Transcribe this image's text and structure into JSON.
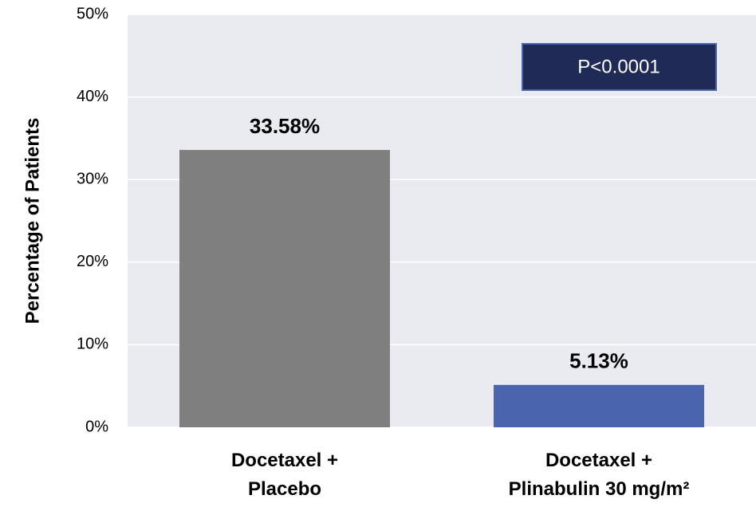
{
  "chart_data": {
    "type": "bar",
    "y_label": "Percentage of Patients",
    "categories": [
      "Docetaxel +\nPlacebo",
      "Docetaxel +\nPlinabulin 30 mg/m²"
    ],
    "values": [
      33.58,
      5.13
    ],
    "value_labels": [
      "33.58%",
      "5.13%"
    ],
    "colors": [
      "#7f7f7f",
      "#4a65ad"
    ],
    "ylim": [
      0,
      50
    ],
    "yticks": [
      {
        "value": 0,
        "label": "0%"
      },
      {
        "value": 10,
        "label": "10%"
      },
      {
        "value": 20,
        "label": "20%"
      },
      {
        "value": 30,
        "label": "30%"
      },
      {
        "value": 40,
        "label": "40%"
      },
      {
        "value": 50,
        "label": "50%"
      }
    ],
    "grid": true,
    "annotation": "P<0.0001"
  }
}
